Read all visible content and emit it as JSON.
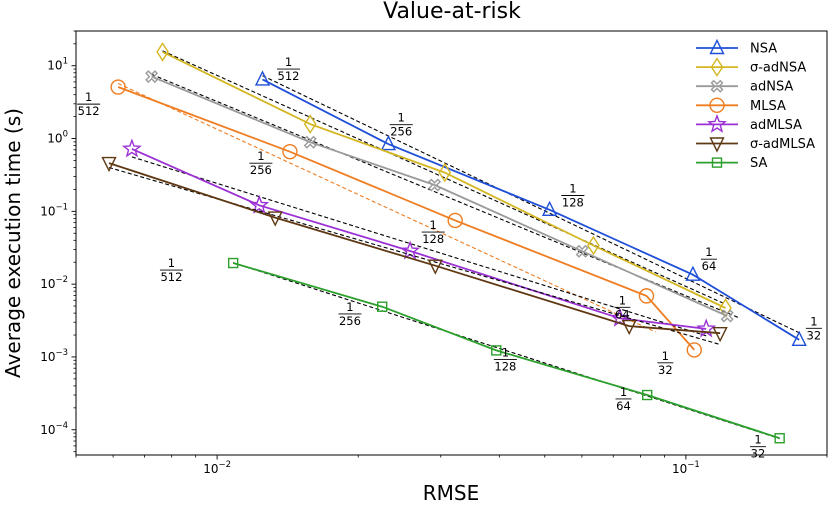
{
  "chart_data": {
    "type": "line",
    "title": "Value-at-risk",
    "xlabel": "RMSE",
    "ylabel": "Average execution time (s)",
    "xscale": "log",
    "yscale": "log",
    "xlim": [
      0.005,
      0.2
    ],
    "ylim": [
      4.5e-05,
      30
    ],
    "xticks": [
      {
        "value": 0.01,
        "base": "10",
        "exp": "−2"
      },
      {
        "value": 0.1,
        "base": "10",
        "exp": "−1"
      }
    ],
    "yticks": [
      {
        "value": 0.0001,
        "base": "10",
        "exp": "−4"
      },
      {
        "value": 0.001,
        "base": "10",
        "exp": "−3"
      },
      {
        "value": 0.01,
        "base": "10",
        "exp": "−2"
      },
      {
        "value": 0.1,
        "base": "10",
        "exp": "−1"
      },
      {
        "value": 1,
        "base": "10",
        "exp": "0"
      },
      {
        "value": 10,
        "base": "10",
        "exp": "1"
      }
    ],
    "legend_position": "top-right",
    "series": [
      {
        "name": "NSA",
        "color": "#1f4fd8",
        "marker": "triangle-up",
        "x": [
          0.0125,
          0.0232,
          0.0512,
          0.1035,
          0.1745
        ],
        "y": [
          6.5,
          0.84,
          0.105,
          0.0135,
          0.00172
        ],
        "fit": {
          "x": [
            0.0125,
            0.1745
          ],
          "y": [
            7.3,
            0.00215
          ]
        }
      },
      {
        "name": "σ-adNSA",
        "color": "#d4b622",
        "marker": "diamond",
        "x": [
          0.00765,
          0.0158,
          0.0306,
          0.0635,
          0.1215
        ],
        "y": [
          15.5,
          1.58,
          0.34,
          0.034,
          0.0047
        ],
        "fit": {
          "x": [
            0.00765,
            0.1215
          ],
          "y": [
            16.0,
            0.0053
          ]
        }
      },
      {
        "name": "adNSA",
        "color": "#9a9a9a",
        "marker": "x",
        "x": [
          0.00725,
          0.0158,
          0.0291,
          0.0601,
          0.1225
        ],
        "y": [
          7.1,
          0.89,
          0.23,
          0.0283,
          0.00365
        ],
        "fit": {
          "x": [
            0.00725,
            0.1305
          ],
          "y": [
            7.6,
            0.0034
          ]
        }
      },
      {
        "name": "MLSA",
        "color": "#ef7d22",
        "marker": "circle",
        "x": [
          0.00615,
          0.0143,
          0.0322,
          0.0824,
          0.1042
        ],
        "y": [
          5.1,
          0.66,
          0.075,
          0.0069,
          0.00125
        ],
        "fit": {
          "x": [
            0.00615,
            0.0862
          ],
          "y": [
            5.7,
            0.0022
          ]
        }
      },
      {
        "name": "adMLSA",
        "color": "#9b31d4",
        "marker": "star",
        "x": [
          0.00658,
          0.0123,
          0.0258,
          0.0723,
          0.1105
        ],
        "y": [
          0.72,
          0.121,
          0.0285,
          0.0034,
          0.00243
        ],
        "fit": {
          "x": [
            0.00658,
            0.1105
          ],
          "y": [
            0.56,
            0.00195
          ]
        }
      },
      {
        "name": "σ-adMLSA",
        "color": "#5e3812",
        "marker": "triangle-down",
        "x": [
          0.00588,
          0.0133,
          0.0292,
          0.0757,
          0.1183
        ],
        "y": [
          0.46,
          0.082,
          0.0179,
          0.00265,
          0.00212
        ],
        "fit": {
          "x": [
            0.00588,
            0.1183
          ],
          "y": [
            0.4,
            0.00148
          ]
        }
      },
      {
        "name": "SA",
        "color": "#2ca02c",
        "marker": "square",
        "x": [
          0.01082,
          0.0225,
          0.0394,
          0.0827,
          0.1585
        ],
        "y": [
          0.0195,
          0.0049,
          0.00123,
          0.0003,
          7.65e-05
        ],
        "fit": {
          "x": [
            0.01082,
            0.1585
          ],
          "y": [
            0.0197,
            7.55e-05
          ]
        }
      }
    ],
    "annotations": [
      {
        "numerator": "1",
        "denominator": "512",
        "x": 0.0142,
        "y": 9.0
      },
      {
        "numerator": "1",
        "denominator": "256",
        "x": 0.0247,
        "y": 1.55
      },
      {
        "numerator": "1",
        "denominator": "128",
        "x": 0.0574,
        "y": 0.165
      },
      {
        "numerator": "1",
        "denominator": "64",
        "x": 0.112,
        "y": 0.022
      },
      {
        "numerator": "1",
        "denominator": "32",
        "x": 0.1875,
        "y": 0.00247
      },
      {
        "numerator": "1",
        "denominator": "512",
        "x": 0.00532,
        "y": 2.97
      },
      {
        "numerator": "1",
        "denominator": "256",
        "x": 0.0124,
        "y": 0.458
      },
      {
        "numerator": "1",
        "denominator": "128",
        "x": 0.0289,
        "y": 0.052
      },
      {
        "numerator": "1",
        "denominator": "64",
        "x": 0.0732,
        "y": 0.0048
      },
      {
        "numerator": "1",
        "denominator": "32",
        "x": 0.0904,
        "y": 0.00083
      },
      {
        "numerator": "1",
        "denominator": "512",
        "x": 0.00799,
        "y": 0.0156
      },
      {
        "numerator": "1",
        "denominator": "256",
        "x": 0.0192,
        "y": 0.0039
      },
      {
        "numerator": "1",
        "denominator": "128",
        "x": 0.0412,
        "y": 0.00092
      },
      {
        "numerator": "1",
        "denominator": "64",
        "x": 0.0736,
        "y": 0.000265
      },
      {
        "numerator": "1",
        "denominator": "32",
        "x": 0.1425,
        "y": 5.85e-05
      }
    ]
  }
}
